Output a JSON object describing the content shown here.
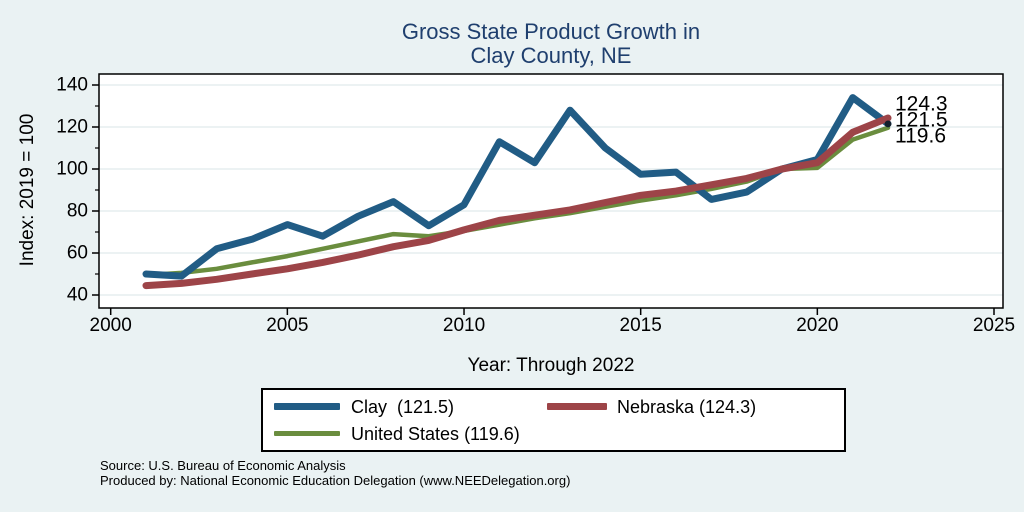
{
  "title": {
    "line1": "Gross State Product Growth in",
    "line2": "Clay County, NE"
  },
  "chart_data": {
    "type": "line",
    "title": "Gross State Product Growth in Clay County, NE",
    "xlabel": "Year: Through 2022",
    "ylabel": "Index: 2019 = 100",
    "xlim": [
      2000,
      2025
    ],
    "ylim": [
      40,
      140
    ],
    "x_ticks": [
      2000,
      2005,
      2010,
      2015,
      2020,
      2025
    ],
    "y_ticks": [
      40,
      60,
      80,
      100,
      120,
      140
    ],
    "y_minor_ticks": [
      50,
      70,
      90,
      110,
      130
    ],
    "grid": "horizontal",
    "legend_position": "bottom",
    "x": [
      2001,
      2002,
      2003,
      2004,
      2005,
      2006,
      2007,
      2008,
      2009,
      2010,
      2011,
      2012,
      2013,
      2014,
      2015,
      2016,
      2017,
      2018,
      2019,
      2020,
      2021,
      2022
    ],
    "series": [
      {
        "name": "Clay",
        "color": "#215c85",
        "stroke_width": 7,
        "end_marker": true,
        "final_label": "121.5",
        "final_value": 121.5,
        "values": [
          50,
          49,
          62,
          66.5,
          73.5,
          68,
          77.5,
          84.5,
          73,
          83,
          113,
          103,
          128,
          110,
          97.5,
          98.5,
          85.5,
          89,
          100,
          104.5,
          134,
          121.5
        ]
      },
      {
        "name": "Nebraska",
        "color": "#9d4448",
        "stroke_width": 7,
        "end_marker": false,
        "final_label": "124.3",
        "final_value": 124.3,
        "values": [
          44.5,
          45.5,
          47.5,
          50,
          52.5,
          55.5,
          59,
          63,
          66,
          71,
          75.5,
          78,
          80.5,
          84,
          87.5,
          89.5,
          92.5,
          95.5,
          100,
          103,
          117.5,
          124.3
        ]
      },
      {
        "name": "United States",
        "color": "#6a8d3e",
        "stroke_width": 4.5,
        "end_marker": false,
        "final_label": "119.6",
        "final_value": 119.6,
        "values": [
          49.5,
          50.5,
          52.5,
          55.5,
          58.5,
          62,
          65.5,
          69,
          68,
          70.5,
          73.5,
          76.5,
          79,
          82,
          85,
          87.5,
          90.5,
          94,
          100,
          100.5,
          114,
          119.6
        ]
      }
    ]
  },
  "legend": {
    "items": [
      {
        "label": "Clay  (121.5)",
        "color": "#215c85"
      },
      {
        "label": "Nebraska (124.3)",
        "color": "#9d4448"
      },
      {
        "label": "United States (119.6)",
        "color": "#6a8d3e"
      }
    ]
  },
  "footer": {
    "line1": "Source: U.S. Bureau of Economic Analysis",
    "line2": "Produced by: National Economic Education Delegation (www.NEEDelegation.org)"
  },
  "colors": {
    "background": "#eaf2f3",
    "plot_background": "#ffffff",
    "grid": "#e0eaec",
    "axis": "#000000",
    "title": "#1f3f6e",
    "end_marker": "#14202c"
  }
}
